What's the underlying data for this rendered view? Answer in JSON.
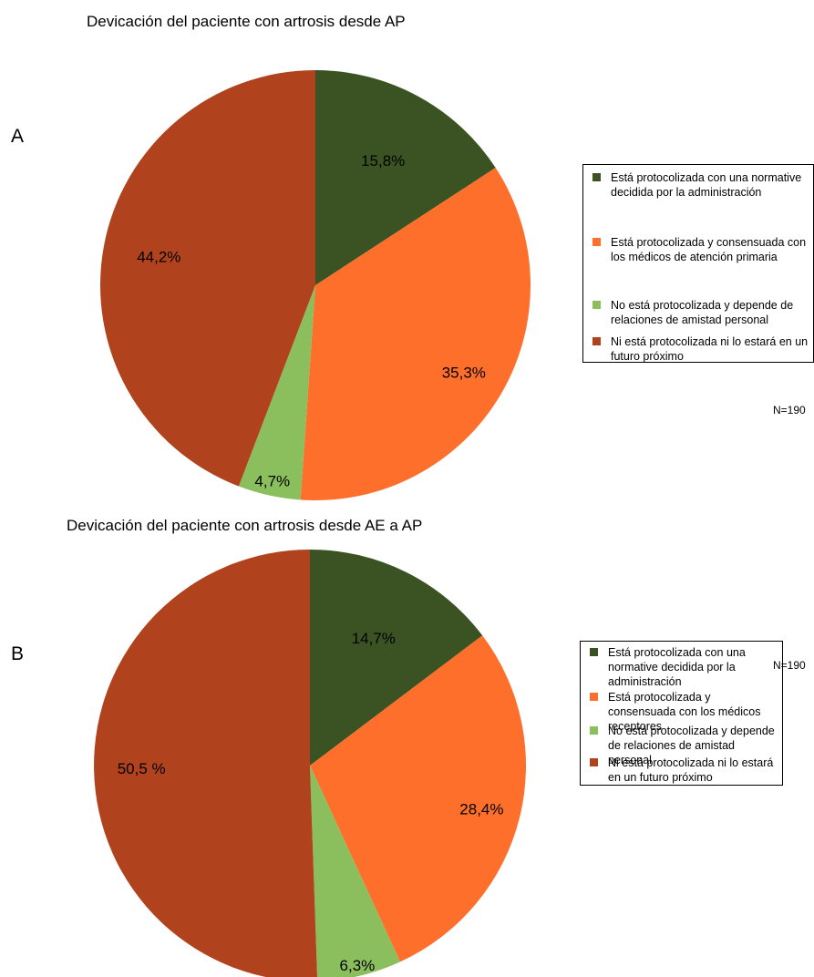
{
  "chart_data": [
    {
      "type": "pie",
      "panel_label": "A",
      "title": "Devicación del paciente con artrosis desde AP",
      "slices": [
        {
          "label": "Está protocolizada con una normative decidida por la administración",
          "value": 15.8,
          "display": "15,8%",
          "color": "#3b5323"
        },
        {
          "label": "Está protocolizada y consensuada con los médicos de atención primaria",
          "value": 35.3,
          "display": "35,3%",
          "color": "#ff6f2c"
        },
        {
          "label": "No está protocolizada y depende de relaciones de amistad personal",
          "value": 4.7,
          "display": "4,7%",
          "color": "#8bbf5d"
        },
        {
          "label": "Ni está protocolizada ni lo estará en un futuro próximo",
          "value": 44.2,
          "display": "44,2%",
          "color": "#b0431e"
        }
      ],
      "legend_placement": "right",
      "note": "N=190"
    },
    {
      "type": "pie",
      "panel_label": "B",
      "title": "Devicación del paciente con artrosis desde AE a AP",
      "slices": [
        {
          "label": "Está protocolizada con una normative decidida por la administración",
          "value": 14.7,
          "display": "14,7%",
          "color": "#3b5323"
        },
        {
          "label": "Está protocolizada y consensuada con los médicos receptores",
          "value": 28.4,
          "display": "28,4%",
          "color": "#ff6f2c"
        },
        {
          "label": "No está protocolizada y depende de relaciones de amistad personal",
          "value": 6.3,
          "display": "6,3%",
          "color": "#8bbf5d"
        },
        {
          "label": "Ni está protocolizada ni lo estará en un futuro próximo",
          "value": 50.5,
          "display": "50,5 %",
          "color": "#b0431e"
        }
      ],
      "legend_placement": "right",
      "note": "N=190"
    }
  ]
}
